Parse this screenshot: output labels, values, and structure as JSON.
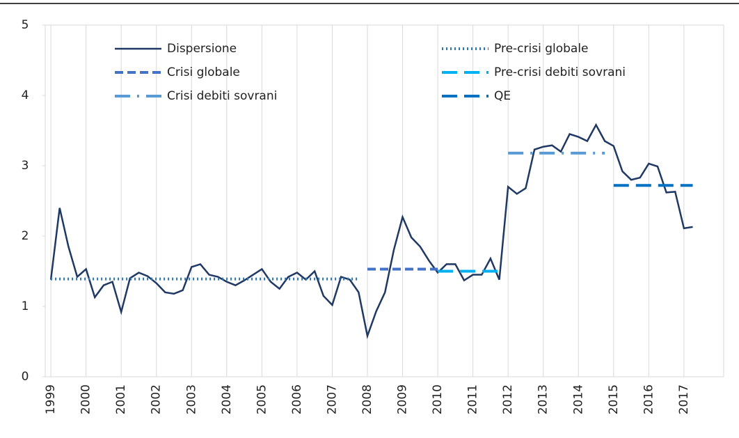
{
  "chart_data": {
    "type": "line",
    "xlim": [
      1998.84,
      2018.13
    ],
    "ylim": [
      0,
      5
    ],
    "xticks": [
      1999,
      2000,
      2001,
      2002,
      2003,
      2004,
      2005,
      2006,
      2007,
      2008,
      2009,
      2010,
      2011,
      2012,
      2013,
      2014,
      2015,
      2016,
      2017
    ],
    "yticks": [
      0,
      1,
      2,
      3,
      4,
      5
    ],
    "grid": true,
    "legend": "top",
    "series": [
      {
        "name": "Dispersione",
        "color": "#1f3864",
        "dash": "solid",
        "x": [
          1999,
          1999.25,
          1999.5,
          1999.75,
          2000,
          2000.25,
          2000.5,
          2000.75,
          2001,
          2001.25,
          2001.5,
          2001.75,
          2002,
          2002.25,
          2002.5,
          2002.75,
          2003,
          2003.25,
          2003.5,
          2003.75,
          2004,
          2004.25,
          2004.5,
          2004.75,
          2005,
          2005.25,
          2005.5,
          2005.75,
          2006,
          2006.25,
          2006.5,
          2006.75,
          2007,
          2007.25,
          2007.5,
          2007.75,
          2008,
          2008.25,
          2008.5,
          2008.75,
          2009,
          2009.25,
          2009.5,
          2009.75,
          2010,
          2010.25,
          2010.5,
          2010.75,
          2011,
          2011.25,
          2011.5,
          2011.75,
          2012,
          2012.25,
          2012.5,
          2012.75,
          2013,
          2013.25,
          2013.5,
          2013.75,
          2014,
          2014.25,
          2014.5,
          2014.75,
          2015,
          2015.25,
          2015.5,
          2015.75,
          2016,
          2016.25,
          2016.5,
          2016.75,
          2017,
          2017.25
        ],
        "values": [
          1.38,
          2.4,
          1.85,
          1.42,
          1.53,
          1.13,
          1.3,
          1.35,
          0.92,
          1.4,
          1.48,
          1.43,
          1.33,
          1.2,
          1.18,
          1.23,
          1.56,
          1.6,
          1.45,
          1.42,
          1.35,
          1.3,
          1.37,
          1.45,
          1.53,
          1.35,
          1.25,
          1.42,
          1.48,
          1.38,
          1.5,
          1.15,
          1.02,
          1.42,
          1.38,
          1.2,
          0.58,
          0.93,
          1.2,
          1.8,
          2.27,
          1.98,
          1.85,
          1.65,
          1.48,
          1.6,
          1.6,
          1.37,
          1.45,
          1.45,
          1.68,
          1.38,
          2.7,
          2.6,
          2.68,
          3.23,
          3.27,
          3.29,
          3.2,
          3.45,
          3.41,
          3.35,
          3.58,
          3.35,
          3.28,
          2.92,
          2.8,
          2.83,
          3.03,
          2.99,
          2.62,
          2.63,
          2.11,
          2.13
        ]
      },
      {
        "name": "Pre-crisi globale",
        "color": "#2e75b6",
        "dash": "dotted",
        "x": [
          1999,
          2007.75
        ],
        "values": [
          1.39,
          1.39
        ]
      },
      {
        "name": "Crisi globale",
        "color": "#4472c4",
        "dash": "dashed",
        "x": [
          2008,
          2010
        ],
        "values": [
          1.53,
          1.53
        ]
      },
      {
        "name": "Pre-crisi debiti sovrani",
        "color": "#00b0f0",
        "dash": "longdash",
        "x": [
          2010,
          2011.75
        ],
        "values": [
          1.5,
          1.5
        ]
      },
      {
        "name": "Crisi debiti sovrani",
        "color": "#5b9bd5",
        "dash": "dashdot",
        "x": [
          2012,
          2014.75
        ],
        "values": [
          3.18,
          3.18
        ]
      },
      {
        "name": "QE",
        "color": "#0070c0",
        "dash": "longdash",
        "x": [
          2015,
          2017.25
        ],
        "values": [
          2.72,
          2.72
        ]
      }
    ]
  }
}
